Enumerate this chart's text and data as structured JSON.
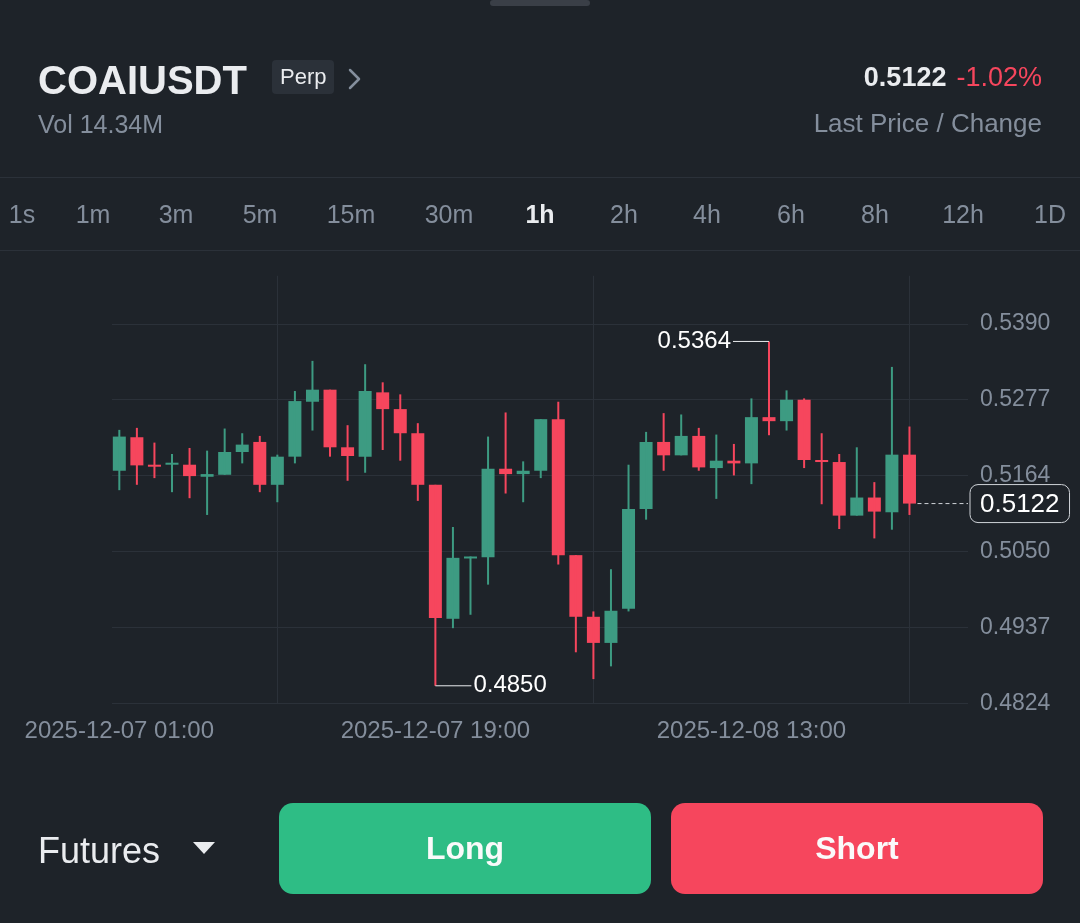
{
  "chart_data": {
    "type": "candlestick",
    "title": "COAIUSDT",
    "subtitle": "Vol 14.34M",
    "x": [
      "2025-12-07T01:00",
      "2025-12-07T02:00",
      "2025-12-07T03:00",
      "2025-12-07T04:00",
      "2025-12-07T05:00",
      "2025-12-07T06:00",
      "2025-12-07T07:00",
      "2025-12-07T08:00",
      "2025-12-07T09:00",
      "2025-12-07T10:00",
      "2025-12-07T11:00",
      "2025-12-07T12:00",
      "2025-12-07T13:00",
      "2025-12-07T14:00",
      "2025-12-07T15:00",
      "2025-12-07T16:00",
      "2025-12-07T17:00",
      "2025-12-07T18:00",
      "2025-12-07T19:00",
      "2025-12-07T20:00",
      "2025-12-07T21:00",
      "2025-12-07T22:00",
      "2025-12-07T23:00",
      "2025-12-08T00:00",
      "2025-12-08T01:00",
      "2025-12-08T02:00",
      "2025-12-08T03:00",
      "2025-12-08T04:00",
      "2025-12-08T05:00",
      "2025-12-08T06:00",
      "2025-12-08T07:00",
      "2025-12-08T08:00",
      "2025-12-08T09:00",
      "2025-12-08T10:00",
      "2025-12-08T11:00",
      "2025-12-08T12:00",
      "2025-12-08T13:00",
      "2025-12-08T14:00",
      "2025-12-08T15:00",
      "2025-12-08T16:00",
      "2025-12-08T17:00",
      "2025-12-08T18:00",
      "2025-12-08T19:00",
      "2025-12-08T20:00",
      "2025-12-08T21:00",
      "2025-12-08T22:00"
    ],
    "ohlc": [
      [
        0.5171,
        0.5232,
        0.5142,
        0.5222
      ],
      [
        0.5221,
        0.5235,
        0.515,
        0.5179
      ],
      [
        0.518,
        0.5213,
        0.516,
        0.5177
      ],
      [
        0.518,
        0.5196,
        0.5139,
        0.5183
      ],
      [
        0.518,
        0.5205,
        0.513,
        0.5163
      ],
      [
        0.5162,
        0.5201,
        0.5105,
        0.5166
      ],
      [
        0.5165,
        0.5234,
        0.5165,
        0.5199
      ],
      [
        0.5199,
        0.5227,
        0.5182,
        0.521
      ],
      [
        0.5214,
        0.5223,
        0.5139,
        0.515
      ],
      [
        0.515,
        0.5195,
        0.5124,
        0.5192
      ],
      [
        0.5192,
        0.529,
        0.5182,
        0.5275
      ],
      [
        0.5274,
        0.5335,
        0.5231,
        0.5292
      ],
      [
        0.5292,
        0.5292,
        0.5192,
        0.5206
      ],
      [
        0.5206,
        0.5239,
        0.5156,
        0.5193
      ],
      [
        0.5192,
        0.533,
        0.5168,
        0.529
      ],
      [
        0.5288,
        0.5303,
        0.5202,
        0.5263
      ],
      [
        0.5263,
        0.5285,
        0.5186,
        0.5227
      ],
      [
        0.5227,
        0.5242,
        0.5126,
        0.515
      ],
      [
        0.515,
        0.515,
        0.485,
        0.4951
      ],
      [
        0.495,
        0.5087,
        0.4936,
        0.5041
      ],
      [
        0.5041,
        0.5043,
        0.4956,
        0.5043
      ],
      [
        0.5042,
        0.5222,
        0.5001,
        0.5174
      ],
      [
        0.5174,
        0.5258,
        0.5137,
        0.5166
      ],
      [
        0.5166,
        0.5185,
        0.5124,
        0.5171
      ],
      [
        0.5171,
        0.5248,
        0.516,
        0.5248
      ],
      [
        0.5248,
        0.5274,
        0.5031,
        0.5045
      ],
      [
        0.5045,
        0.5045,
        0.49,
        0.4953
      ],
      [
        0.4953,
        0.4961,
        0.486,
        0.4914
      ],
      [
        0.4914,
        0.5024,
        0.4879,
        0.4962
      ],
      [
        0.4965,
        0.518,
        0.4961,
        0.5114
      ],
      [
        0.5114,
        0.5229,
        0.5098,
        0.5214
      ],
      [
        0.5214,
        0.5257,
        0.5171,
        0.5194
      ],
      [
        0.5194,
        0.5255,
        0.5194,
        0.5223
      ],
      [
        0.5223,
        0.5235,
        0.5171,
        0.5176
      ],
      [
        0.5175,
        0.5225,
        0.5129,
        0.5186
      ],
      [
        0.5186,
        0.5211,
        0.5164,
        0.5182
      ],
      [
        0.5182,
        0.5279,
        0.5151,
        0.5251
      ],
      [
        0.5251,
        0.5364,
        0.5224,
        0.5245
      ],
      [
        0.5245,
        0.5291,
        0.5231,
        0.5277
      ],
      [
        0.5277,
        0.5279,
        0.5175,
        0.5187
      ],
      [
        0.5187,
        0.5227,
        0.5121,
        0.5184
      ],
      [
        0.5184,
        0.5196,
        0.5084,
        0.5104
      ],
      [
        0.5104,
        0.5206,
        0.5104,
        0.5131
      ],
      [
        0.5131,
        0.5154,
        0.507,
        0.511
      ],
      [
        0.5109,
        0.5326,
        0.5083,
        0.5195
      ],
      [
        0.5195,
        0.5237,
        0.5105,
        0.5122
      ]
    ],
    "colors": [
      "#3d9b82",
      "#f6465d",
      "#f6465d",
      "#3d9b82",
      "#f6465d",
      "#3d9b82",
      "#3d9b82",
      "#3d9b82",
      "#f6465d",
      "#3d9b82",
      "#3d9b82",
      "#3d9b82",
      "#f6465d",
      "#f6465d",
      "#3d9b82",
      "#f6465d",
      "#f6465d",
      "#f6465d",
      "#f6465d",
      "#3d9b82",
      "#3d9b82",
      "#3d9b82",
      "#f6465d",
      "#3d9b82",
      "#3d9b82",
      "#f6465d",
      "#f6465d",
      "#f6465d",
      "#3d9b82",
      "#3d9b82",
      "#3d9b82",
      "#f6465d",
      "#3d9b82",
      "#f6465d",
      "#3d9b82",
      "#f6465d",
      "#3d9b82",
      "#f6465d",
      "#3d9b82",
      "#f6465d",
      "#f6465d",
      "#f6465d",
      "#3d9b82",
      "#f6465d",
      "#3d9b82",
      "#f6465d"
    ],
    "xlim": [
      "2025-12-07T00:35",
      "2025-12-09T01:20"
    ],
    "xticks": [
      {
        "value": "2025-12-07T01:00",
        "label": "2025-12-07 01:00"
      },
      {
        "value": "2025-12-07T19:00",
        "label": "2025-12-07 19:00"
      },
      {
        "value": "2025-12-08T13:00",
        "label": "2025-12-08 13:00"
      }
    ],
    "ylim": [
      0.4824,
      0.5462
    ],
    "yticks": [
      {
        "value": 0.4824,
        "label": "0.4824"
      },
      {
        "value": 0.4937,
        "label": "0.4937"
      },
      {
        "value": 0.505,
        "label": "0.5050"
      },
      {
        "value": 0.5164,
        "label": "0.5164"
      },
      {
        "value": 0.5277,
        "label": "0.5277"
      },
      {
        "value": 0.539,
        "label": "0.5390"
      }
    ],
    "grid": true,
    "ref_lines": [
      {
        "axis": "y",
        "value": 0.5122,
        "label": "0.5122",
        "line_style": "dashed",
        "color": "#cfd3d8"
      }
    ],
    "annotations": [
      "Perp",
      "0.5122",
      "-1.02%",
      "Last Price / Change",
      "1s",
      "1m",
      "3m",
      "5m",
      "15m",
      "30m",
      "1h",
      "2h",
      "4h",
      "6h",
      "8h",
      "12h",
      "1D",
      "Futures",
      "Long",
      "Short",
      {
        "text": "0.5364",
        "x": "2025-12-08T14:00",
        "y": 0.5364
      },
      {
        "text": "0.4850",
        "x": "2025-12-07T19:00",
        "y": 0.485
      }
    ]
  }
}
